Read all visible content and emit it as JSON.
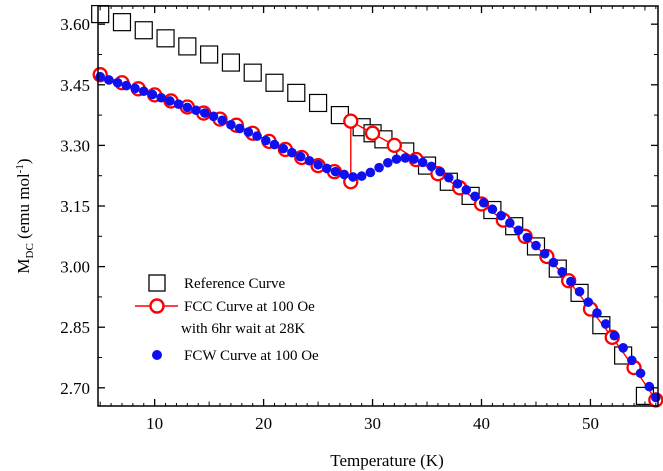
{
  "chart_data": {
    "type": "scatter",
    "title": "",
    "xlabel": "Temperature (K)",
    "ylabel": {
      "main": "M",
      "sub": "DC",
      "unit_pre": " (emu mol",
      "unit_sup": "-1",
      "unit_post": ")"
    },
    "xlim": [
      4.8,
      56.2
    ],
    "ylim": [
      2.655,
      3.645
    ],
    "xticks": [
      10,
      20,
      30,
      40,
      50
    ],
    "xtick_labels": [
      "10",
      "20",
      "30",
      "40",
      "50"
    ],
    "yticks": [
      2.7,
      2.85,
      3.0,
      3.15,
      3.3,
      3.45,
      3.6
    ],
    "ytick_labels": [
      "2.70",
      "2.85",
      "3.00",
      "3.15",
      "3.30",
      "3.45",
      "3.60"
    ],
    "grid": false,
    "legend_position": "bottom-left",
    "series": [
      {
        "name": "Reference Curve",
        "marker": "open-square",
        "color": "#000000",
        "points": [
          [
            5,
            3.625
          ],
          [
            7,
            3.605
          ],
          [
            9,
            3.585
          ],
          [
            11,
            3.565
          ],
          [
            13,
            3.545
          ],
          [
            15,
            3.525
          ],
          [
            17,
            3.505
          ],
          [
            19,
            3.48
          ],
          [
            21,
            3.455
          ],
          [
            23,
            3.43
          ],
          [
            25,
            3.405
          ],
          [
            27,
            3.375
          ],
          [
            29,
            3.345
          ],
          [
            30,
            3.33
          ],
          [
            31,
            3.315
          ],
          [
            33,
            3.285
          ],
          [
            35,
            3.25
          ],
          [
            37,
            3.21
          ],
          [
            39,
            3.175
          ],
          [
            41,
            3.14
          ],
          [
            43,
            3.1
          ],
          [
            45,
            3.05
          ],
          [
            47,
            2.995
          ],
          [
            49,
            2.935
          ],
          [
            51,
            2.855
          ],
          [
            53,
            2.78
          ],
          [
            55,
            2.68
          ]
        ]
      },
      {
        "name": "FCC Curve at 100 Oe",
        "name_line2": "with 6hr wait at 28K",
        "marker": "open-circle",
        "color": "#ff0000",
        "points": [
          [
            5,
            3.475
          ],
          [
            7,
            3.455
          ],
          [
            8.5,
            3.44
          ],
          [
            10,
            3.425
          ],
          [
            11.5,
            3.41
          ],
          [
            13,
            3.395
          ],
          [
            14.5,
            3.38
          ],
          [
            16,
            3.365
          ],
          [
            17.5,
            3.35
          ],
          [
            19,
            3.33
          ],
          [
            20.5,
            3.31
          ],
          [
            22,
            3.29
          ],
          [
            23.5,
            3.27
          ],
          [
            25,
            3.25
          ],
          [
            26.5,
            3.235
          ],
          [
            28,
            3.21
          ],
          [
            28,
            3.36
          ],
          [
            30,
            3.33
          ],
          [
            32,
            3.3
          ],
          [
            34,
            3.265
          ],
          [
            36,
            3.23
          ],
          [
            38,
            3.195
          ],
          [
            40,
            3.155
          ],
          [
            42,
            3.115
          ],
          [
            44,
            3.075
          ],
          [
            46,
            3.025
          ],
          [
            48,
            2.965
          ],
          [
            50,
            2.895
          ],
          [
            52,
            2.825
          ],
          [
            54,
            2.75
          ],
          [
            56,
            2.67
          ]
        ]
      },
      {
        "name": "FCW Curve at 100 Oe",
        "marker": "filled-circle",
        "color": "#1010ee",
        "points": [
          [
            5,
            3.47
          ],
          [
            5.8,
            3.462
          ],
          [
            6.6,
            3.455
          ],
          [
            7.4,
            3.448
          ],
          [
            8.2,
            3.441
          ],
          [
            9,
            3.434
          ],
          [
            9.8,
            3.426
          ],
          [
            10.6,
            3.418
          ],
          [
            11.4,
            3.41
          ],
          [
            12.2,
            3.402
          ],
          [
            13,
            3.394
          ],
          [
            13.8,
            3.387
          ],
          [
            14.6,
            3.38
          ],
          [
            15.4,
            3.372
          ],
          [
            16.2,
            3.362
          ],
          [
            17,
            3.351
          ],
          [
            17.8,
            3.342
          ],
          [
            18.6,
            3.333
          ],
          [
            19.4,
            3.323
          ],
          [
            20.2,
            3.312
          ],
          [
            21,
            3.302
          ],
          [
            21.8,
            3.292
          ],
          [
            22.6,
            3.282
          ],
          [
            23.4,
            3.272
          ],
          [
            24.2,
            3.262
          ],
          [
            25,
            3.252
          ],
          [
            25.8,
            3.243
          ],
          [
            26.6,
            3.235
          ],
          [
            27.4,
            3.228
          ],
          [
            28.2,
            3.222
          ],
          [
            29,
            3.224
          ],
          [
            29.8,
            3.233
          ],
          [
            30.6,
            3.245
          ],
          [
            31.4,
            3.257
          ],
          [
            32.2,
            3.266
          ],
          [
            33,
            3.269
          ],
          [
            33.8,
            3.266
          ],
          [
            34.6,
            3.258
          ],
          [
            35.4,
            3.248
          ],
          [
            36.2,
            3.235
          ],
          [
            37,
            3.22
          ],
          [
            37.8,
            3.205
          ],
          [
            38.6,
            3.19
          ],
          [
            39.4,
            3.174
          ],
          [
            40.2,
            3.158
          ],
          [
            41,
            3.142
          ],
          [
            41.8,
            3.126
          ],
          [
            42.6,
            3.108
          ],
          [
            43.4,
            3.09
          ],
          [
            44.2,
            3.072
          ],
          [
            45,
            3.052
          ],
          [
            45.8,
            3.032
          ],
          [
            46.6,
            3.01
          ],
          [
            47.4,
            2.987
          ],
          [
            48.2,
            2.963
          ],
          [
            49,
            2.938
          ],
          [
            49.8,
            2.912
          ],
          [
            50.6,
            2.885
          ],
          [
            51.4,
            2.858
          ],
          [
            52.2,
            2.829
          ],
          [
            53,
            2.799
          ],
          [
            53.8,
            2.768
          ],
          [
            54.6,
            2.736
          ],
          [
            55.4,
            2.703
          ],
          [
            56,
            2.676
          ]
        ]
      }
    ]
  }
}
